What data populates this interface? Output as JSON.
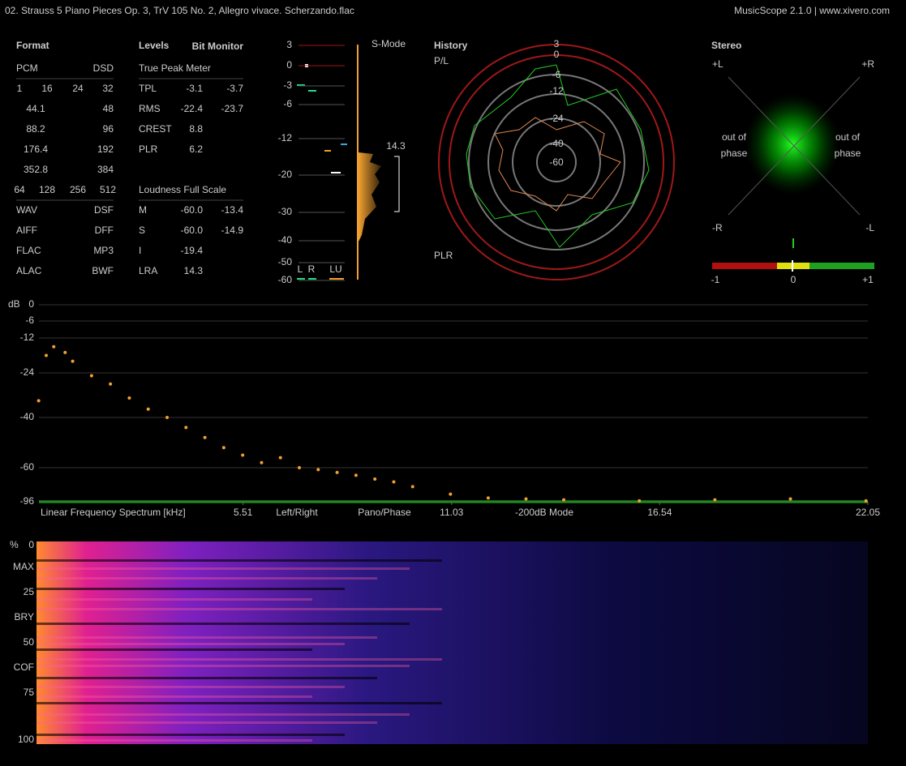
{
  "header": {
    "title": "02. Strauss 5 Piano Pieces Op. 3, TrV 105 No. 2, Allegro vivace. Scherzando.flac",
    "app": "MusicScope 2.1.0 | www.xivero.com"
  },
  "format": {
    "title": "Format",
    "rows": [
      [
        "PCM",
        "DSD"
      ],
      [
        "1",
        "16",
        "24",
        "32"
      ],
      [
        "44.1",
        "48"
      ],
      [
        "88.2",
        "96"
      ],
      [
        "176.4",
        "192"
      ],
      [
        "352.8",
        "384"
      ],
      [
        "64",
        "128",
        "256",
        "512"
      ],
      [
        "WAV",
        "DSF"
      ],
      [
        "AIFF",
        "DFF"
      ],
      [
        "FLAC",
        "MP3"
      ],
      [
        "ALAC",
        "BWF"
      ]
    ]
  },
  "levels": {
    "title": "Levels",
    "bit_monitor": "Bit Monitor",
    "true_peak_heading": "True Peak Meter",
    "rows": [
      [
        "TPL",
        "-3.1",
        "-3.7"
      ],
      [
        "RMS",
        "-22.4",
        "-23.7"
      ],
      [
        "CREST",
        "8.8"
      ],
      [
        "PLR",
        "6.2"
      ]
    ],
    "loudness_heading": "Loudness Full Scale",
    "loudness_rows": [
      [
        "M",
        "-60.0",
        "-13.4"
      ],
      [
        "S",
        "-60.0",
        "-14.9"
      ],
      [
        "I",
        "-19.4"
      ],
      [
        "LRA",
        "14.3"
      ]
    ]
  },
  "meter": {
    "scale": [
      3,
      0,
      -3,
      -6,
      -12,
      -20,
      -30,
      -40,
      -50,
      -60
    ],
    "mode": "S-Mode",
    "lra": "14.3",
    "channels": [
      "L",
      "R",
      "LU"
    ]
  },
  "history": {
    "title": "History",
    "top": "P/L",
    "bottom": "PLR",
    "ring_labels": [
      3,
      0,
      -6,
      -12,
      -24,
      -40,
      -60
    ]
  },
  "stereo": {
    "title": "Stereo",
    "corners": [
      "+L",
      "+R",
      "-R",
      "-L"
    ],
    "out_of_phase": [
      "out of",
      "phase"
    ],
    "correlation": [
      "-1",
      "0",
      "+1"
    ]
  },
  "spectrum": {
    "y_label": "dB",
    "yticks": [
      0,
      -6,
      -12,
      -24,
      -40,
      -60,
      -96
    ],
    "title": "Linear Frequency Spectrum [kHz]",
    "xlim": [
      0,
      22.05
    ],
    "xticks": [
      5.51,
      11.03,
      16.54,
      22.05
    ],
    "modes": [
      "Left/Right",
      "Pano/Phase",
      "-200dB Mode"
    ],
    "points": {
      "x": [
        0.1,
        0.3,
        0.5,
        0.8,
        1,
        1.5,
        2,
        2.5,
        3,
        3.5,
        4,
        4.5,
        5,
        5.5,
        6,
        6.5,
        7,
        7.5,
        8,
        8.5,
        9,
        9.5,
        10,
        11,
        12,
        13,
        14,
        16,
        18,
        20,
        22
      ],
      "y": [
        -34,
        -18,
        -15,
        -17,
        -20,
        -25,
        -28,
        -33,
        -37,
        -40,
        -44,
        -48,
        -52,
        -55,
        -58,
        -56,
        -60,
        -62,
        -65,
        -68,
        -72,
        -75,
        -80,
        -88,
        -92,
        -93,
        -94,
        -95,
        -94,
        -93,
        -95
      ]
    }
  },
  "spectrogram": {
    "unit": "%",
    "ticks": [
      "0",
      "MAX",
      "25",
      "BRY",
      "50",
      "COF",
      "75",
      "100"
    ]
  }
}
